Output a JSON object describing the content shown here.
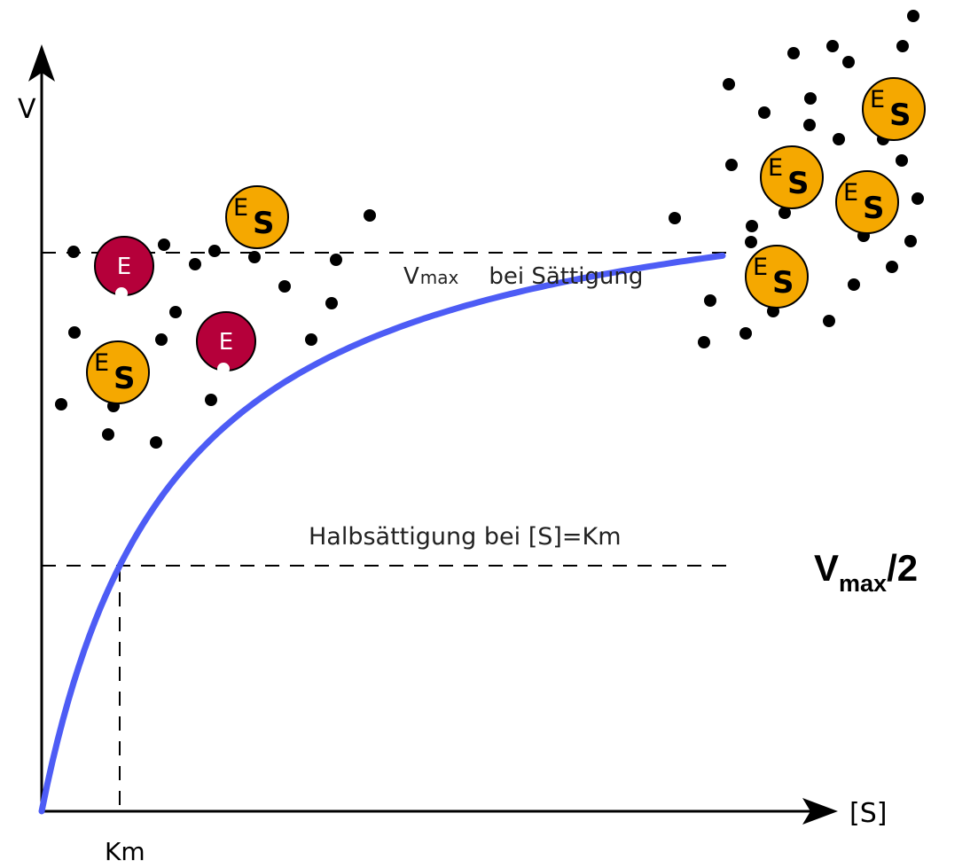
{
  "axes": {
    "y_label": "V",
    "x_label": "[S]",
    "km_label": "Km"
  },
  "vmax_line": {
    "symbol": "V",
    "subscript": "max",
    "text": "bei Sättigung"
  },
  "half_line": {
    "text": "Halbsättigung bei [S]=Km"
  },
  "half_value": {
    "symbol": "V",
    "subscript": "max",
    "suffix": "/2"
  },
  "free_enzyme": {
    "label": "E"
  },
  "complex": {
    "enzyme": "E",
    "substrate": "S"
  }
}
